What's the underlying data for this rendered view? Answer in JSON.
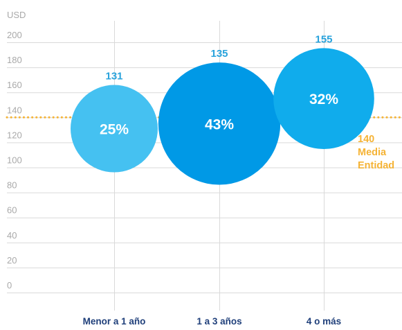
{
  "chart_data": {
    "type": "scatter",
    "unit_label": "USD",
    "y_ticks": [
      0,
      20,
      40,
      60,
      80,
      100,
      120,
      140,
      160,
      180,
      200
    ],
    "ylim": [
      0,
      200
    ],
    "grid": true,
    "categories": [
      "Menor a 1 año",
      "1 a 3 años",
      "4 o más"
    ],
    "values": [
      131,
      135,
      155
    ],
    "value_labels": [
      "131",
      "135",
      "155"
    ],
    "shares": [
      "25%",
      "43%",
      "32%"
    ],
    "share_values": [
      25,
      43,
      32
    ],
    "reference_line": {
      "value": 140,
      "label_value": "140",
      "label_lines": [
        "Media",
        "Entidad"
      ]
    },
    "colors": {
      "bubbles": [
        "#45c1f1",
        "#0099e6",
        "#10acec"
      ],
      "value_labels": "#29a3dc",
      "reference": "#f5b335",
      "category_labels": "#1f3f7a",
      "grid": "#d9d9d9",
      "ticks": "#a9a9a9"
    }
  }
}
